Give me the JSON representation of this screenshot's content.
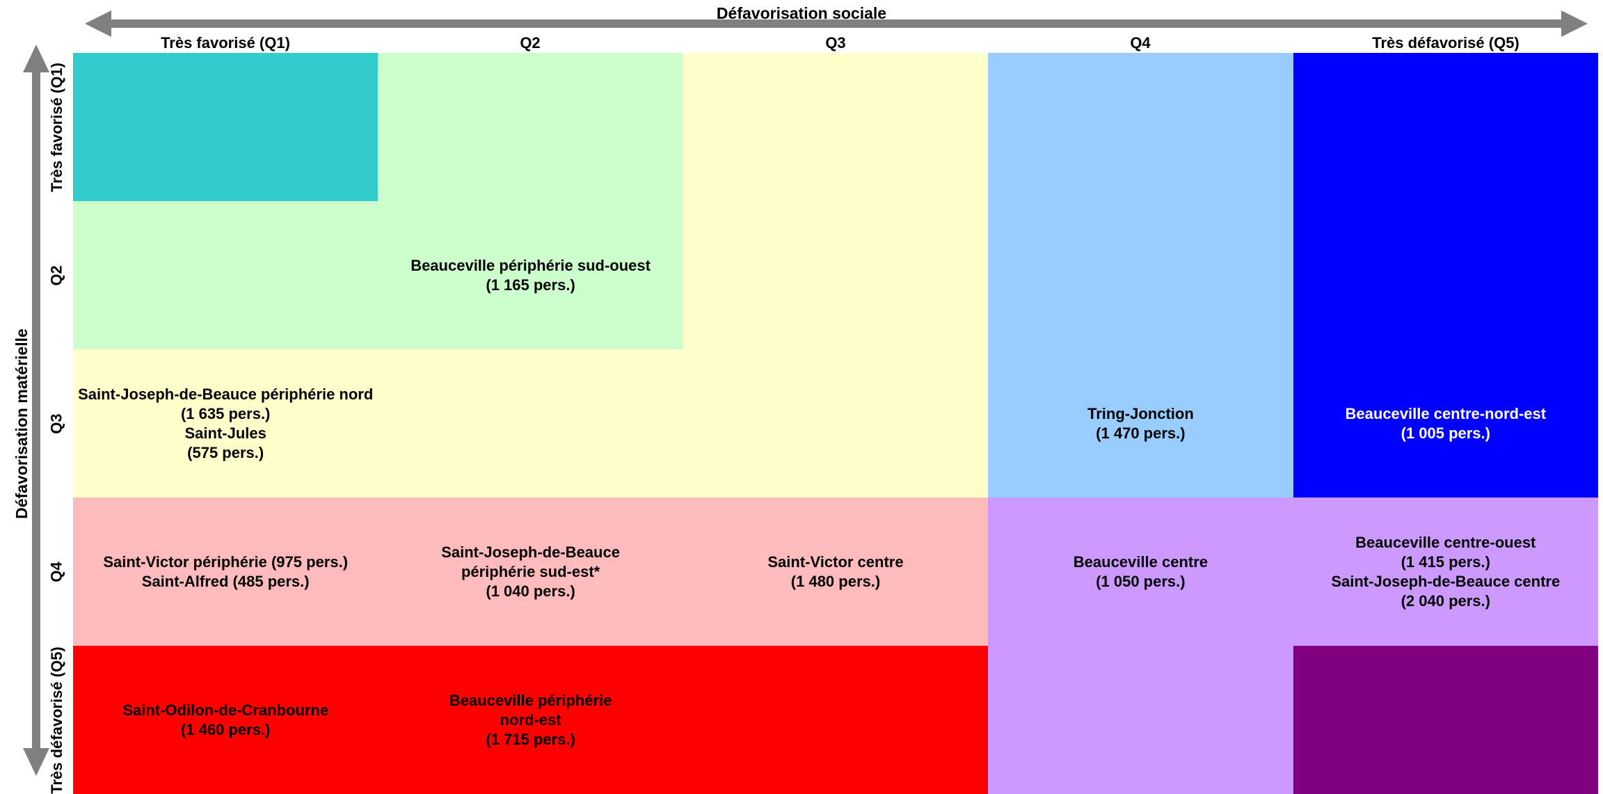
{
  "axis_x": {
    "title": "Défavorisation sociale",
    "columns": [
      "Très favorisé (Q1)",
      "Q2",
      "Q3",
      "Q4",
      "Très défavorisé (Q5)"
    ]
  },
  "axis_y": {
    "title": "Défavorisation matérielle",
    "rows": [
      "Très favorisé (Q1)",
      "Q2",
      "Q3",
      "Q4",
      "Très défavorisé (Q5)"
    ]
  },
  "colors": {
    "teal": "#33CCCC",
    "light_green": "#CCFFCC",
    "light_yellow": "#FFFFCC",
    "light_blue": "#99CCFF",
    "blue": "#0000FF",
    "pink": "#FFBBBB",
    "lavender": "#CC99FF",
    "red": "#FF0000",
    "purple": "#800080",
    "arrow_gray": "#808080"
  },
  "cells": [
    {
      "name": "cell-q1-q1",
      "color": "teal",
      "col_from": 0,
      "col_to": 1,
      "row_from": 0,
      "row_to": 1
    },
    {
      "name": "cell-region-light-green",
      "color": "light_green",
      "col_from": 0,
      "col_to": 2,
      "row_from": 1,
      "row_to": 2
    },
    {
      "name": "cell-region-light-green-top",
      "color": "light_green",
      "col_from": 1,
      "col_to": 2,
      "row_from": 0,
      "row_to": 1
    },
    {
      "name": "cell-region-light-yellow-left",
      "color": "light_yellow",
      "col_from": 0,
      "col_to": 2,
      "row_from": 2,
      "row_to": 3
    },
    {
      "name": "cell-region-light-yellow-right",
      "color": "light_yellow",
      "col_from": 2,
      "col_to": 3,
      "row_from": 0,
      "row_to": 3
    },
    {
      "name": "cell-region-light-blue",
      "color": "light_blue",
      "col_from": 3,
      "col_to": 4,
      "row_from": 0,
      "row_to": 3
    },
    {
      "name": "cell-region-blue",
      "color": "blue",
      "col_from": 4,
      "col_to": 5,
      "row_from": 0,
      "row_to": 3
    },
    {
      "name": "cell-region-pink",
      "color": "pink",
      "col_from": 0,
      "col_to": 3,
      "row_from": 3,
      "row_to": 4
    },
    {
      "name": "cell-region-lavender",
      "color": "lavender",
      "col_from": 3,
      "col_to": 5,
      "row_from": 3,
      "row_to": 4
    },
    {
      "name": "cell-region-lavender-bottom",
      "color": "lavender",
      "col_from": 3,
      "col_to": 4,
      "row_from": 4,
      "row_to": 5
    },
    {
      "name": "cell-region-red",
      "color": "red",
      "col_from": 0,
      "col_to": 3,
      "row_from": 4,
      "row_to": 5
    },
    {
      "name": "cell-q5-q5",
      "color": "purple",
      "col_from": 4,
      "col_to": 5,
      "row_from": 4,
      "row_to": 5
    }
  ],
  "labels": [
    {
      "name": "label-beauceville-peripherie-sud-ouest",
      "col": 1,
      "row": 1,
      "lines": [
        "Beauceville périphérie sud-ouest",
        "(1 165 pers.)"
      ],
      "text_color": "#000000"
    },
    {
      "name": "label-saint-joseph-peripherie-nord-saint-jules",
      "col": 0,
      "row": 2,
      "lines": [
        "Saint-Joseph-de-Beauce périphérie nord",
        "(1 635 pers.)",
        "Saint-Jules",
        "(575 pers.)"
      ],
      "text_color": "#000000"
    },
    {
      "name": "label-tring-jonction",
      "col": 3,
      "row": 2,
      "lines": [
        "Tring-Jonction",
        "(1 470 pers.)"
      ],
      "text_color": "#000000"
    },
    {
      "name": "label-beauceville-centre-nord-est",
      "col": 4,
      "row": 2,
      "lines": [
        "Beauceville centre-nord-est",
        "(1 005 pers.)"
      ],
      "text_color": "#FFFFFF"
    },
    {
      "name": "label-saint-victor-peripherie-saint-alfred",
      "col": 0,
      "row": 3,
      "lines": [
        "Saint-Victor périphérie (975 pers.)",
        "Saint-Alfred (485 pers.)"
      ],
      "text_color": "#000000"
    },
    {
      "name": "label-saint-joseph-peripherie-sud-est",
      "col": 1,
      "row": 3,
      "lines": [
        "Saint-Joseph-de-Beauce",
        "périphérie sud-est*",
        "(1 040 pers.)"
      ],
      "text_color": "#000000"
    },
    {
      "name": "label-saint-victor-centre",
      "col": 2,
      "row": 3,
      "lines": [
        "Saint-Victor centre",
        "(1 480 pers.)"
      ],
      "text_color": "#000000"
    },
    {
      "name": "label-beauceville-centre",
      "col": 3,
      "row": 3,
      "lines": [
        "Beauceville centre",
        "(1 050 pers.)"
      ],
      "text_color": "#000000"
    },
    {
      "name": "label-beauceville-centre-ouest-saint-joseph-centre",
      "col": 4,
      "row": 3,
      "lines": [
        "Beauceville centre-ouest",
        "(1 415 pers.)",
        "Saint-Joseph-de-Beauce centre",
        "(2 040 pers.)"
      ],
      "text_color": "#000000"
    },
    {
      "name": "label-saint-odilon-de-cranbourne",
      "col": 0,
      "row": 4,
      "lines": [
        "Saint-Odilon-de-Cranbourne",
        "(1 460 pers.)"
      ],
      "text_color": "#000000"
    },
    {
      "name": "label-beauceville-peripherie-nord-est",
      "col": 1,
      "row": 4,
      "lines": [
        "Beauceville périphérie",
        "nord-est",
        "(1 715 pers.)"
      ],
      "text_color": "#000000"
    }
  ]
}
